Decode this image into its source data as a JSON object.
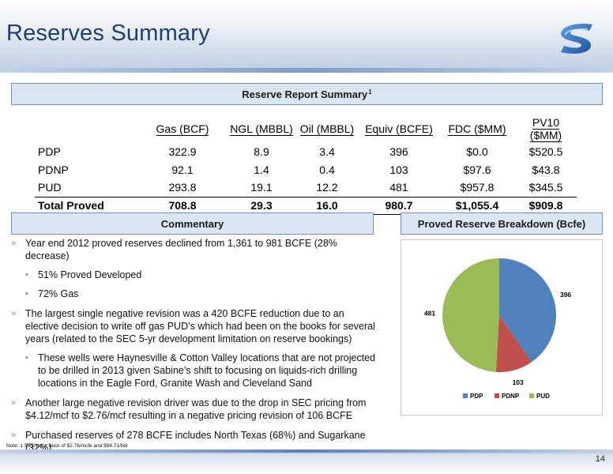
{
  "header": {
    "title": "Reserves Summary"
  },
  "reserve_summary": {
    "heading": "Reserve Report Summary",
    "heading_footnote": "1",
    "columns": [
      "",
      "Gas (BCF)",
      "NGL (MBBL)",
      "Oil (MBBL)",
      "Equiv (BCFE)",
      "FDC ($MM)",
      "PV10 ($MM)"
    ],
    "rows": [
      [
        "PDP",
        "322.9",
        "8.9",
        "3.4",
        "396",
        "$0.0",
        "$520.5"
      ],
      [
        "PDNP",
        "92.1",
        "1.4",
        "0.4",
        "103",
        "$97.6",
        "$43.8"
      ],
      [
        "PUD",
        "293.8",
        "19.1",
        "12.2",
        "481",
        "$957.8",
        "$345.5"
      ]
    ],
    "total": [
      "Total Proved",
      "708.8",
      "29.3",
      "16.0",
      "980.7",
      "$1,055.4",
      "$909.8"
    ]
  },
  "commentary": {
    "heading": "Commentary",
    "bullet_mark": "»",
    "sub_mark": "•",
    "bullets": [
      {
        "text": "Year end 2012 proved reserves declined from 1,361 to 981 BCFE (28% decrease)",
        "subs": [
          "51% Proved Developed",
          "72% Gas"
        ]
      },
      {
        "text": "The largest single negative revision was a 420 BCFE reduction due to an elective decision to write off gas PUD’s which had been on the books for several years (related to the SEC 5-yr development limitation on reserve bookings)",
        "subs": [
          "These wells were Haynesville & Cotton Valley locations that are not projected to be drilled in 2013 given Sabine’s shift to focusing on liquids-rich drilling locations in the Eagle Ford, Granite Wash and Cleveland Sand"
        ]
      },
      {
        "text": "Another large negative revision driver was due to the drop in SEC pricing from $4.12/mcf to $2.76/mcf resulting in a negative pricing revision of 106 BCFE",
        "subs": []
      },
      {
        "text": "Purchased reserves of 278 BCFE includes North Texas (68%) and Sugarkane (32%)",
        "subs": []
      }
    ]
  },
  "chart_panel": {
    "heading": "Proved Reserve Breakdown (Bcfe)"
  },
  "chart_data": {
    "type": "pie",
    "title": "",
    "categories": [
      "PDP",
      "PDNP",
      "PUD"
    ],
    "values": [
      396,
      103,
      481
    ],
    "colors": [
      "#4f81bd",
      "#c0504d",
      "#9bbb59"
    ],
    "data_labels": [
      "396",
      "103",
      "481"
    ],
    "legend": "bottom"
  },
  "note": "Note:  1   SEC price deck of $2.76/mcfe and $94.71/bbl",
  "page_number": "14",
  "colors": {
    "title": "#1f3f74",
    "header_fill": "#dbe6f3",
    "header_border": "#6f8fbf",
    "logo_blue": "#2a63b4"
  }
}
